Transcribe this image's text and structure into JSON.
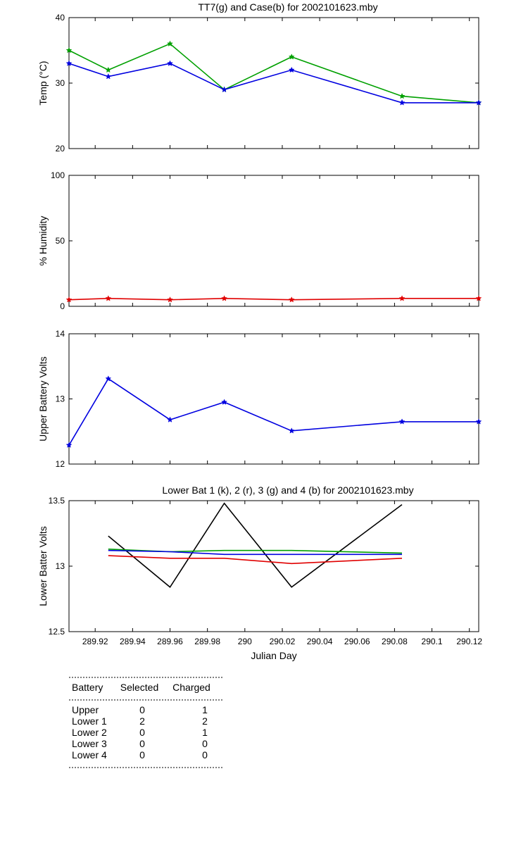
{
  "chart_data": [
    {
      "type": "line",
      "title": "TT7(g) and Case(b) for 2002101623.mby",
      "xlabel": "",
      "ylabel": "Temp  (°C)",
      "xlim": [
        289.906,
        290.125
      ],
      "ylim": [
        20,
        40
      ],
      "yticks": [
        20,
        30,
        40
      ],
      "grid": false,
      "x": [
        289.906,
        289.927,
        289.96,
        289.989,
        290.025,
        290.084,
        290.125
      ],
      "series": [
        {
          "name": "TT7",
          "color": "#00a000",
          "values": [
            35,
            32,
            36,
            29,
            34,
            28,
            27
          ]
        },
        {
          "name": "Case",
          "color": "#0000e0",
          "values": [
            33,
            31,
            33,
            29,
            32,
            27,
            27
          ]
        }
      ]
    },
    {
      "type": "line",
      "title": "",
      "xlabel": "",
      "ylabel": "% Humidity",
      "xlim": [
        289.906,
        290.125
      ],
      "ylim": [
        0,
        100
      ],
      "yticks": [
        0,
        50,
        100
      ],
      "grid": false,
      "x": [
        289.906,
        289.927,
        289.96,
        289.989,
        290.025,
        290.084,
        290.125
      ],
      "series": [
        {
          "name": "Humidity",
          "color": "#e00000",
          "values": [
            5,
            6,
            5,
            6,
            5,
            6,
            6
          ]
        }
      ]
    },
    {
      "type": "line",
      "title": "",
      "xlabel": "",
      "ylabel": "Upper Battery Volts",
      "xlim": [
        289.906,
        290.125
      ],
      "ylim": [
        12,
        14
      ],
      "yticks": [
        12,
        13,
        14
      ],
      "grid": false,
      "x": [
        289.906,
        289.927,
        289.96,
        289.989,
        290.025,
        290.084,
        290.125
      ],
      "series": [
        {
          "name": "Upper",
          "color": "#0000e0",
          "values": [
            12.29,
            13.31,
            12.68,
            12.95,
            12.51,
            12.65,
            12.65
          ]
        }
      ]
    },
    {
      "type": "line",
      "title": "Lower Bat 1 (k), 2 (r), 3 (g) and 4 (b) for 2002101623.mby",
      "xlabel": "Julian Day",
      "ylabel": "Lower Batter Volts",
      "xlim": [
        289.906,
        290.125
      ],
      "ylim": [
        12.5,
        13.5
      ],
      "yticks": [
        12.5,
        13,
        13.5
      ],
      "xticks": [
        289.92,
        289.94,
        289.96,
        289.98,
        290,
        290.02,
        290.04,
        290.06,
        290.08,
        290.1,
        290.12
      ],
      "xticklabels": [
        "289.92",
        "289.94",
        "289.96",
        "289.98",
        "290",
        "290.02",
        "290.04",
        "290.06",
        "290.08",
        "290.1",
        "290.12"
      ],
      "grid": false,
      "x": [
        289.927,
        289.96,
        289.989,
        290.025,
        290.084
      ],
      "series": [
        {
          "name": "1",
          "color": "#000000",
          "values": [
            13.23,
            12.84,
            13.48,
            12.84,
            13.47
          ]
        },
        {
          "name": "2",
          "color": "#e00000",
          "values": [
            13.08,
            13.06,
            13.06,
            13.02,
            13.06
          ]
        },
        {
          "name": "3",
          "color": "#00a000",
          "values": [
            13.13,
            13.11,
            13.12,
            13.12,
            13.1
          ]
        },
        {
          "name": "4",
          "color": "#0000e0",
          "values": [
            13.12,
            13.11,
            13.09,
            13.09,
            13.09
          ]
        }
      ]
    }
  ],
  "table": {
    "headers": [
      "Battery",
      "Selected",
      "Charged"
    ],
    "rows": [
      [
        "Upper",
        "0",
        "1"
      ],
      [
        "Lower 1",
        "2",
        "2"
      ],
      [
        "Lower 2",
        "0",
        "1"
      ],
      [
        "Lower 3",
        "0",
        "0"
      ],
      [
        "Lower 4",
        "0",
        "0"
      ]
    ]
  }
}
